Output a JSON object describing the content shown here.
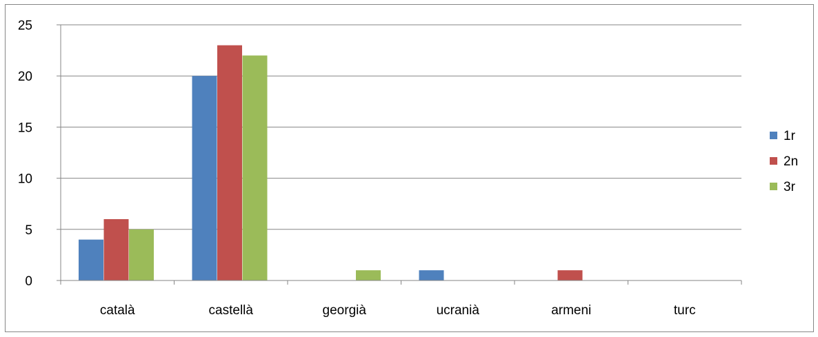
{
  "chart_data": {
    "type": "bar",
    "categories": [
      "català",
      "castellà",
      "georgià",
      "ucranià",
      "armeni",
      "turc"
    ],
    "series": [
      {
        "name": "1r",
        "values": [
          4,
          20,
          0,
          1,
          0,
          0
        ],
        "color": "#4F81BD"
      },
      {
        "name": "2n",
        "values": [
          6,
          23,
          0,
          0,
          1,
          0
        ],
        "color": "#C0504D"
      },
      {
        "name": "3r",
        "values": [
          5,
          22,
          1,
          0,
          0,
          0
        ],
        "color": "#9BBB59"
      }
    ],
    "ylim": [
      0,
      25
    ],
    "yticks": [
      0,
      5,
      10,
      15,
      20,
      25
    ],
    "grid": true,
    "legend_position": "right",
    "gridline_color": "#868686"
  }
}
